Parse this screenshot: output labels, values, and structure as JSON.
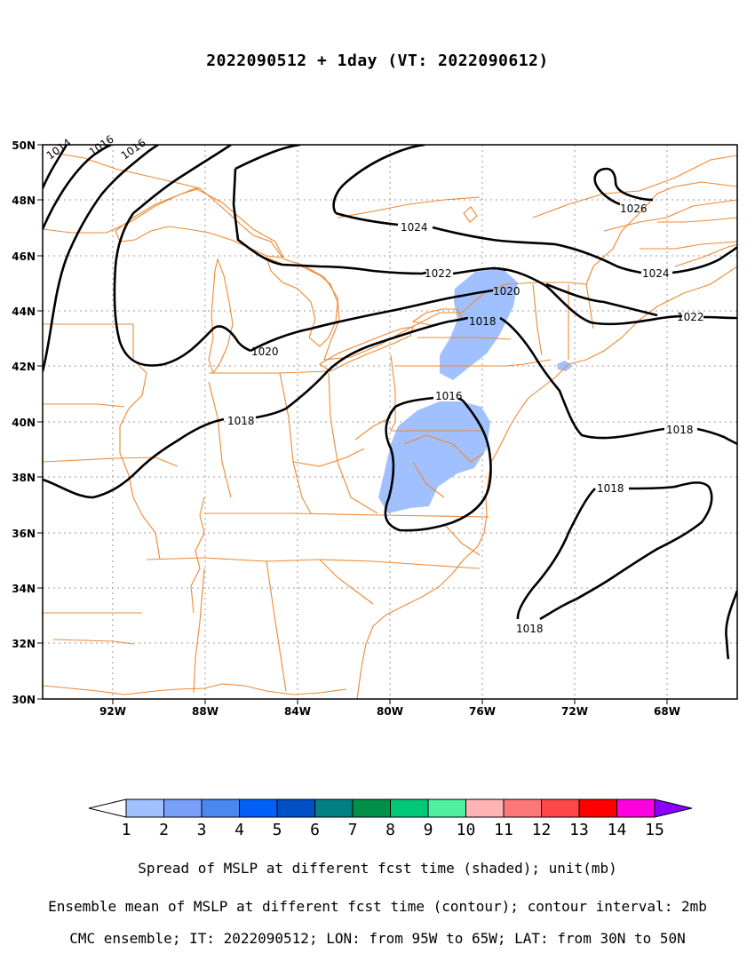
{
  "title": "2022090512 + 1day (VT: 2022090612)",
  "map": {
    "x_axis_labels": [
      "92W",
      "88W",
      "84W",
      "80W",
      "76W",
      "72W",
      "68W"
    ],
    "y_axis_labels": [
      "50N",
      "48N",
      "46N",
      "44N",
      "42N",
      "40N",
      "38N",
      "36N",
      "34N",
      "32N",
      "30N"
    ],
    "lon_range": [
      -95,
      -65
    ],
    "lat_range": [
      30,
      50
    ],
    "border_color": "#ee8833",
    "contour_color": "#000000",
    "spread_color": "#a0c0ff",
    "contour_labels": [
      "1014",
      "1016",
      "1016",
      "1018",
      "1018",
      "1018",
      "1018",
      "1018",
      "1016",
      "1020",
      "1020",
      "1022",
      "1022",
      "1024",
      "1024",
      "1026"
    ]
  },
  "colorbar": {
    "ticks": [
      "1",
      "2",
      "3",
      "4",
      "5",
      "6",
      "7",
      "8",
      "9",
      "10",
      "11",
      "12",
      "13",
      "14",
      "15"
    ],
    "colors": [
      "#a0c0ff",
      "#78a0f8",
      "#4a88f0",
      "#0060f8",
      "#0050c8",
      "#008080",
      "#009048",
      "#00c878",
      "#50f0a0",
      "#ffb4b4",
      "#ff7878",
      "#ff4848",
      "#ff0000",
      "#ff00e0",
      "#8c00ff"
    ]
  },
  "captions": {
    "line1": "Spread of MSLP at different fcst time (shaded); unit(mb)",
    "line2": "Ensemble mean of MSLP at different fcst time (contour); contour interval: 2mb",
    "line3": "CMC ensemble; IT: 2022090512; LON: from 95W to 65W; LAT: from 30N to 50N"
  }
}
